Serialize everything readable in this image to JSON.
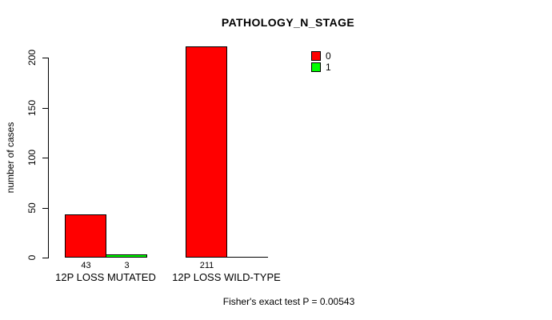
{
  "chart_data": {
    "type": "bar",
    "title": "PATHOLOGY_N_STAGE",
    "ylabel": "number of cases",
    "xlabel": "",
    "categories": [
      "12P LOSS MUTATED",
      "12P LOSS WILD-TYPE"
    ],
    "series": [
      {
        "name": "0",
        "color": "#ff0000",
        "values": [
          43,
          211
        ]
      },
      {
        "name": "1",
        "color": "#00ff00",
        "values": [
          3,
          0
        ]
      }
    ],
    "bar_value_labels": [
      [
        43,
        3
      ],
      [
        211,
        null
      ]
    ],
    "yticks": [
      0,
      50,
      100,
      150,
      200
    ],
    "ylim": [
      0,
      211
    ],
    "grid": false,
    "legend_position": "top-right",
    "annotation": "Fisher's exact test P = 0.00543",
    "bar_border_color": "#000000",
    "background_color": "#ffffff"
  }
}
